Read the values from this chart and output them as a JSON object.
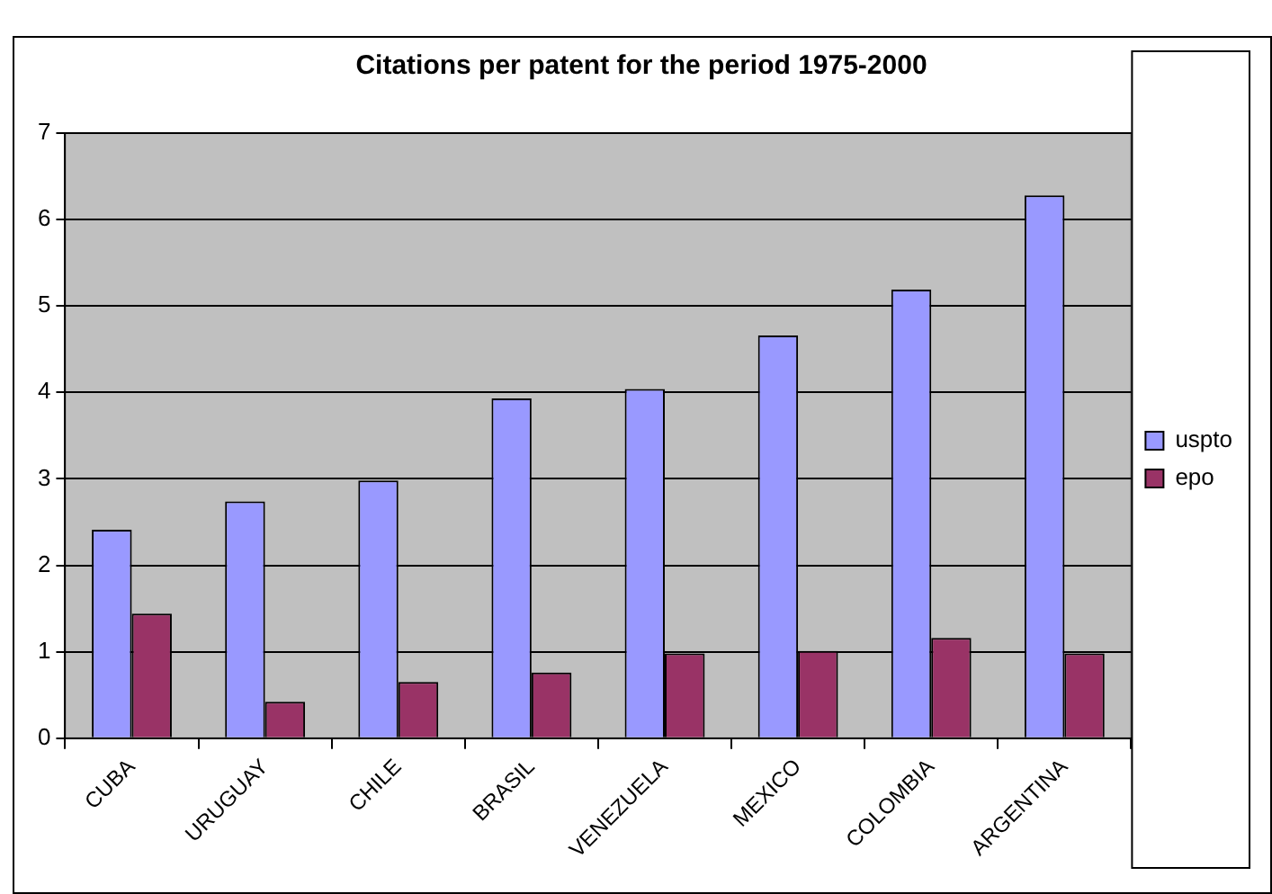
{
  "chart_data": {
    "type": "bar",
    "title": "Citations per patent for the period 1975-2000",
    "categories": [
      "CUBA",
      "URUGUAY",
      "CHILE",
      "BRASIL",
      "VENEZUELA",
      "MEXICO",
      "COLOMBIA",
      "ARGENTINA"
    ],
    "series": [
      {
        "name": "uspto",
        "color": "#9999ff",
        "values": [
          2.41,
          2.74,
          2.98,
          3.93,
          4.04,
          4.66,
          5.19,
          6.28
        ]
      },
      {
        "name": "epo",
        "color": "#993366",
        "values": [
          1.44,
          0.42,
          0.65,
          0.76,
          0.98,
          1.01,
          1.16,
          0.98
        ]
      }
    ],
    "ylim": [
      0,
      7
    ],
    "yticks": [
      0,
      1,
      2,
      3,
      4,
      5,
      6,
      7
    ],
    "grid": "y",
    "legend": "right"
  }
}
